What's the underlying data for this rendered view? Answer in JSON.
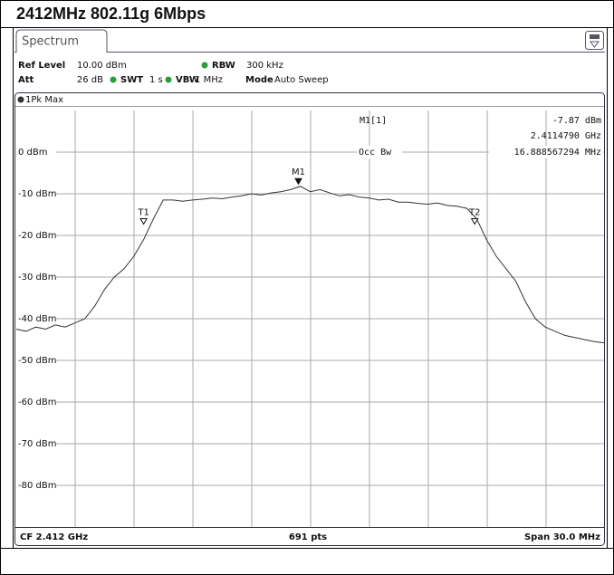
{
  "chart_data": {
    "type": "line",
    "title": "2412MHz 802.11g 6Mbps",
    "tab": "Spectrum",
    "settings": [
      {
        "label": "Ref Level",
        "value": "10.00 dBm"
      },
      {
        "label": "RBW",
        "value": "300 kHz"
      },
      {
        "label": "Att",
        "value": "26 dB"
      },
      {
        "label": "SWT",
        "value": "1 s"
      },
      {
        "label": "VBW",
        "value": "1 MHz"
      },
      {
        "label": "Mode",
        "value": "Auto Sweep"
      }
    ],
    "marker_readout": {
      "name": "M1[1]",
      "level": "-7.87 dBm",
      "frequency": "2.4114790 GHz"
    },
    "occ_bw": {
      "label": "Occ Bw",
      "value": "16.888567294 MHz"
    },
    "footer": {
      "center": "CF 2.412 GHz",
      "points": "691 pts",
      "span": "Span 30.0 MHz"
    },
    "xlim": [
      2397,
      2427
    ],
    "ylim": [
      -90,
      10
    ],
    "yticks": [
      {
        "value": 0,
        "label": "0 dBm"
      },
      {
        "value": -10,
        "label": "-10 dBm"
      },
      {
        "value": -20,
        "label": "-20 dBm"
      },
      {
        "value": -30,
        "label": "-30 dBm"
      },
      {
        "value": -40,
        "label": "-40 dBm"
      },
      {
        "value": -50,
        "label": "-50 dBm"
      },
      {
        "value": -60,
        "label": "-60 dBm"
      },
      {
        "value": -70,
        "label": "-70 dBm"
      },
      {
        "value": -80,
        "label": "-80 dBm"
      }
    ],
    "grid": true,
    "x": [
      2397,
      2397.5,
      2398,
      2398.5,
      2399,
      2399.5,
      2400,
      2400.5,
      2401,
      2401.5,
      2402,
      2402.5,
      2403,
      2403.5,
      2404,
      2404.5,
      2405,
      2405.5,
      2406,
      2406.5,
      2407,
      2407.5,
      2408,
      2408.5,
      2409,
      2409.5,
      2410,
      2410.5,
      2411,
      2411.5,
      2412,
      2412.5,
      2413,
      2413.5,
      2414,
      2414.5,
      2415,
      2415.5,
      2416,
      2416.5,
      2417,
      2417.5,
      2418,
      2418.5,
      2419,
      2419.5,
      2420,
      2420.5,
      2421,
      2421.5,
      2422,
      2422.5,
      2423,
      2423.5,
      2424,
      2424.5,
      2425,
      2425.5,
      2426,
      2426.5,
      2427
    ],
    "series": [
      {
        "name": "1Pk Max",
        "color": "#333333",
        "values": [
          -42.5,
          -43,
          -42,
          -42.5,
          -41.5,
          -42,
          -41,
          -40,
          -37,
          -33,
          -30,
          -28,
          -25,
          -21,
          -16,
          -11.5,
          -11.5,
          -11.8,
          -11.5,
          -11.3,
          -11,
          -11.2,
          -10.8,
          -10.5,
          -10,
          -10.3,
          -9.8,
          -9.5,
          -9,
          -8.2,
          -9.5,
          -9,
          -9.8,
          -10.5,
          -10.2,
          -10.8,
          -11,
          -11.5,
          -11.3,
          -12,
          -12,
          -12.3,
          -12.5,
          -12.2,
          -12.8,
          -13,
          -13.5,
          -16,
          -21,
          -25,
          -28,
          -31,
          -36,
          -40,
          -42,
          -43,
          -44,
          -44.5,
          -45,
          -45.5,
          -45.8
        ]
      }
    ],
    "markers": [
      {
        "label": "M1",
        "x": 2411.4,
        "value": -7.87
      },
      {
        "label": "T1",
        "x": 2403.5,
        "value": -17.5
      },
      {
        "label": "T2",
        "x": 2420.4,
        "value": -17.5
      }
    ]
  }
}
